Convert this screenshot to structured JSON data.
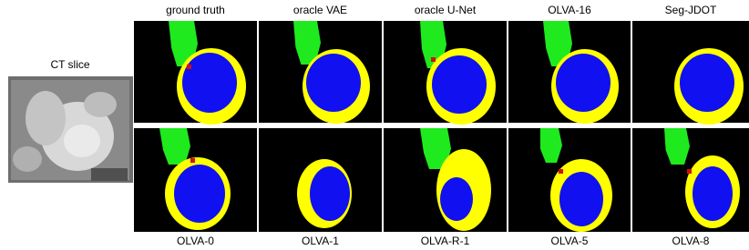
{
  "input": {
    "label": "CT slice"
  },
  "top_row": [
    "ground truth",
    "oracle VAE",
    "oracle U-Net",
    "OLVA-16",
    "Seg-JDOT"
  ],
  "bottom_row": [
    "OLVA-0",
    "OLVA-1",
    "OLVA-R-1",
    "OLVA-5",
    "OLVA-8"
  ]
}
